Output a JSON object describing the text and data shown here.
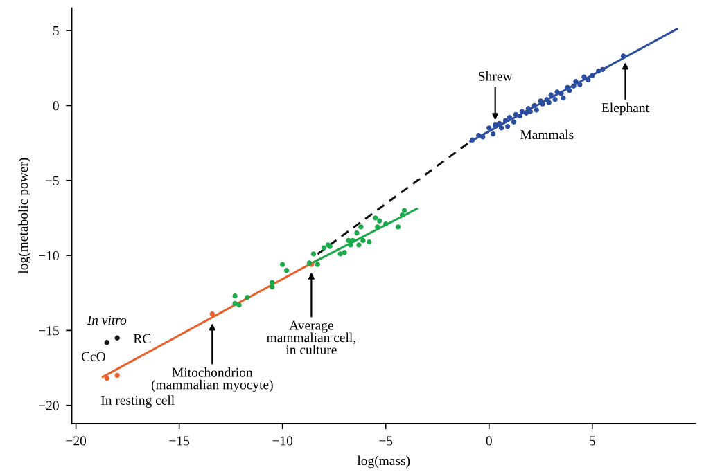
{
  "chart_data": {
    "type": "scatter",
    "xlabel": "log(mass)",
    "ylabel": "log(metabolic power)",
    "xlim": [
      -20.2,
      10
    ],
    "ylim": [
      -21.2,
      6.5
    ],
    "xticks": [
      -20,
      -15,
      -10,
      -5,
      0,
      5
    ],
    "yticks": [
      -20,
      -15,
      -10,
      -5,
      0,
      5
    ],
    "grid": false,
    "legend": false,
    "series": [
      {
        "type": "line",
        "color": "#e8602c",
        "line_style": "solid",
        "marker": "none",
        "x": [
          -18.7,
          -8.3
        ],
        "values": [
          -18.1,
          -10.3
        ]
      },
      {
        "type": "line",
        "color": "#1aa84a",
        "line_style": "solid",
        "marker": "none",
        "x": [
          -8.7,
          -3.5
        ],
        "values": [
          -10.6,
          -6.9
        ]
      },
      {
        "type": "line",
        "color": "#111111",
        "line_style": "dashed",
        "marker": "none",
        "x": [
          -8.3,
          -0.9
        ],
        "values": [
          -9.9,
          -2.4
        ]
      },
      {
        "type": "line",
        "color": "#2b4ea0",
        "line_style": "solid",
        "marker": "none",
        "x": [
          -0.9,
          9.1
        ],
        "values": [
          -2.4,
          5.1
        ]
      },
      {
        "color": "#e8602c",
        "marker": "circle",
        "x": [
          -18.5,
          -18.0,
          -13.4,
          -8.6
        ],
        "values": [
          -18.2,
          -18.0,
          -13.9,
          -10.6
        ]
      },
      {
        "color": "#111111",
        "marker": "circle",
        "x": [
          -18.5,
          -18.0
        ],
        "values": [
          -15.8,
          -15.5
        ]
      },
      {
        "color": "#1aa84a",
        "marker": "circle",
        "x": [
          -12.3,
          -12.3,
          -12.1,
          -11.7,
          -10.5,
          -10.5,
          -10.0,
          -9.8,
          -8.7,
          -8.5,
          -8.3,
          -8.0,
          -7.8,
          -7.7,
          -7.2,
          -7.0,
          -6.8,
          -6.7,
          -6.6,
          -6.4,
          -6.3,
          -6.1,
          -6.2,
          -5.8,
          -5.5,
          -5.4,
          -5.3,
          -5.0,
          -4.4,
          -4.2,
          -4.1
        ],
        "values": [
          -12.7,
          -13.2,
          -13.3,
          -12.8,
          -11.8,
          -12.1,
          -10.6,
          -11.0,
          -10.5,
          -9.9,
          -10.6,
          -9.5,
          -9.3,
          -9.4,
          -9.9,
          -9.8,
          -9.0,
          -9.3,
          -9.0,
          -8.5,
          -9.3,
          -9.0,
          -8.1,
          -9.1,
          -7.5,
          -8.1,
          -7.7,
          -7.9,
          -8.1,
          -7.3,
          -7.0
        ]
      },
      {
        "color": "#2b4ea0",
        "marker": "circle",
        "x": [
          -0.8,
          -0.5,
          -0.3,
          0.0,
          0.2,
          0.3,
          0.5,
          0.6,
          0.8,
          0.9,
          1.0,
          1.2,
          1.3,
          1.5,
          1.6,
          1.8,
          1.9,
          2.0,
          2.2,
          2.3,
          2.5,
          2.6,
          2.8,
          2.9,
          3.0,
          3.2,
          3.3,
          3.5,
          3.6,
          3.8,
          3.9,
          4.1,
          4.2,
          4.4,
          4.6,
          4.8,
          5.0,
          5.3,
          5.5,
          6.5
        ],
        "values": [
          -2.3,
          -2.0,
          -2.1,
          -1.5,
          -1.9,
          -1.3,
          -1.2,
          -1.5,
          -1.0,
          -1.4,
          -0.8,
          -1.1,
          -0.6,
          -0.7,
          -0.4,
          -0.5,
          -0.2,
          -0.4,
          0.0,
          -0.3,
          0.3,
          0.1,
          0.4,
          0.2,
          0.7,
          0.4,
          0.9,
          0.8,
          0.5,
          1.2,
          1.0,
          1.3,
          1.6,
          1.4,
          1.9,
          1.7,
          2.0,
          2.3,
          2.4,
          3.3
        ]
      }
    ],
    "annotations": [
      {
        "text": "Shrew",
        "x": 0.3,
        "y": -1.1
      },
      {
        "text": "Elephant",
        "x": 6.6,
        "y": 3.0
      },
      {
        "text": "Mammals",
        "x": 1.5,
        "y": -1.0
      },
      {
        "text": "Mitochondrion\n(mammalian myocyte)",
        "x": -13.4,
        "y": -14.4
      },
      {
        "text": "Average\nmammalian cell,\nin culture",
        "x": -8.6,
        "y": -11.0
      },
      {
        "text": "In vitro",
        "x": -18.5,
        "y": -15.8
      },
      {
        "text": "RC",
        "x": -18.0,
        "y": -15.5
      },
      {
        "text": "CcO",
        "x": -18.5,
        "y": -15.8
      },
      {
        "text": "In resting cell",
        "x": -18.5,
        "y": -18.2
      }
    ]
  }
}
